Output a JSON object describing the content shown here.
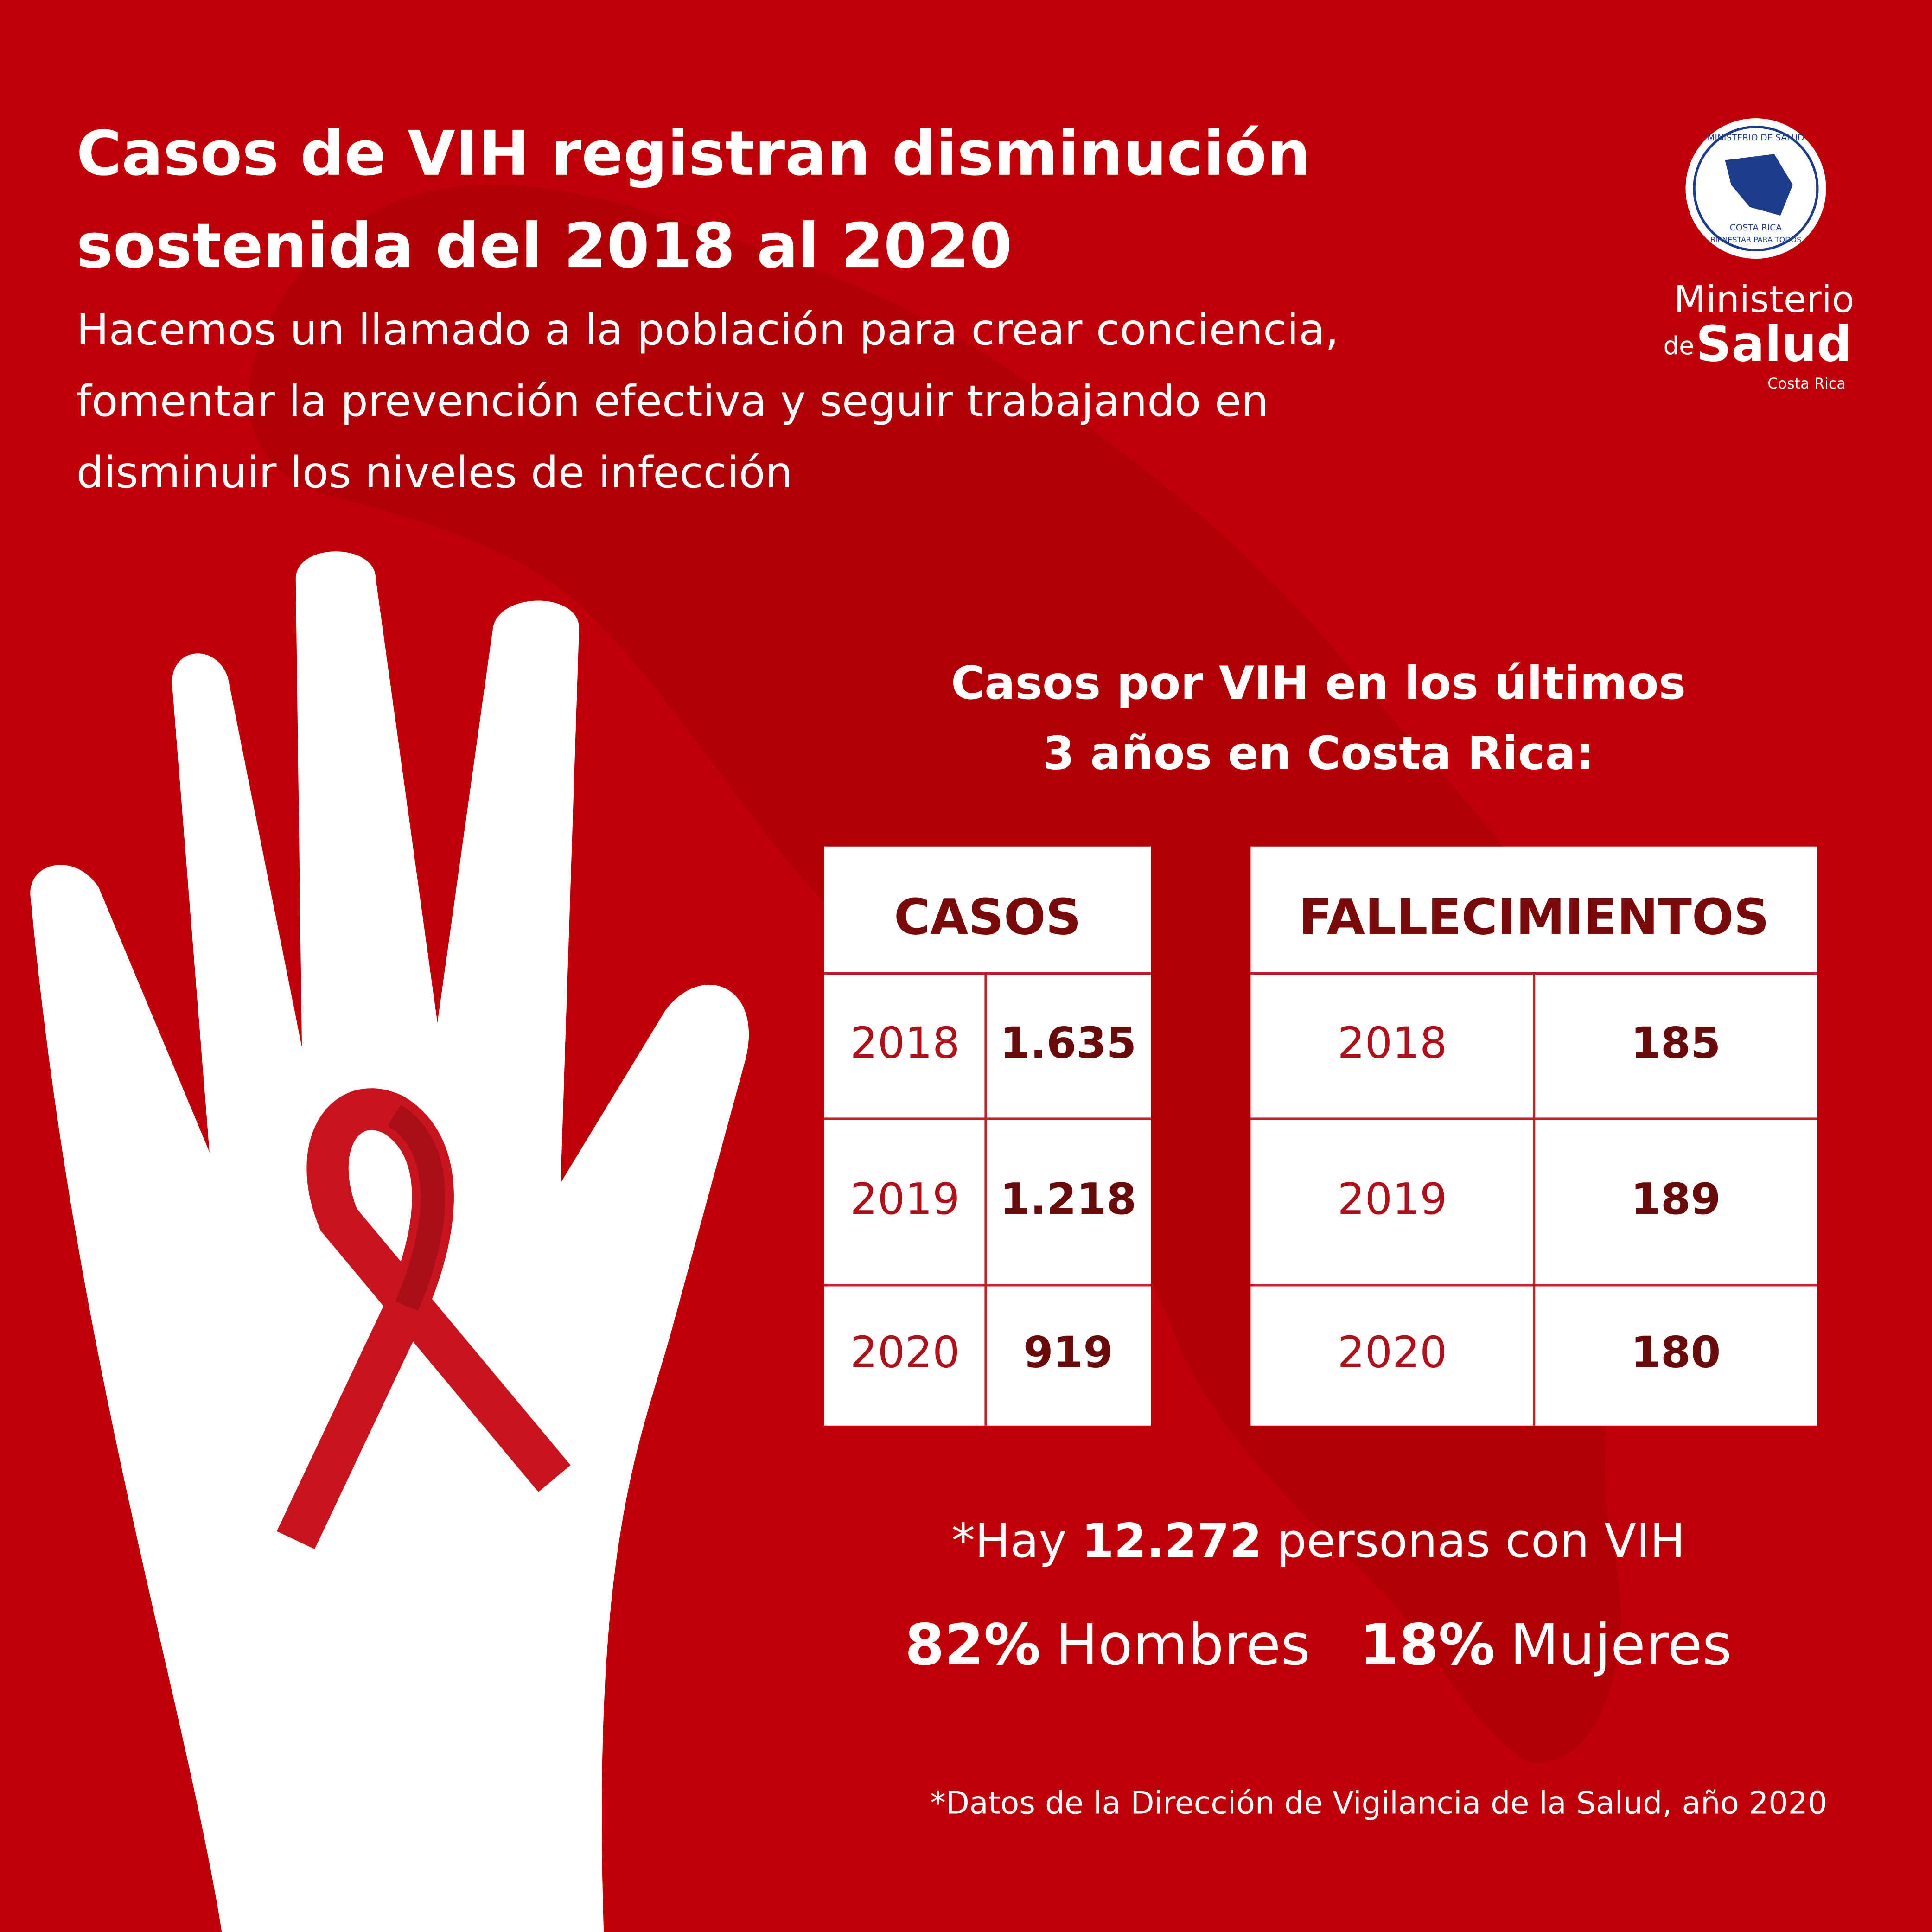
{
  "header": {
    "title_lines": [
      "Casos de VIH registran disminución",
      "sostenida del 2018 al 2020"
    ],
    "subtitle_lines": [
      "Hacemos un llamado a la población para crear conciencia,",
      "fomentar la prevención efectiva y seguir trabajando en",
      "disminuir los niveles de infección"
    ]
  },
  "logo": {
    "seal_top": "MINISTERIO DE SALUD",
    "seal_mid": "COSTA RICA",
    "seal_bottom": "BIENESTAR PARA TODOS",
    "name_1": "Ministerio",
    "name_2": "de",
    "name_3": "Salud",
    "country": "Costa Rica"
  },
  "section_title_lines": [
    "Casos por VIH en los últimos",
    "3 años en Costa Rica:"
  ],
  "tables": [
    {
      "header": "CASOS",
      "rows": [
        [
          "2018",
          "1.635"
        ],
        [
          "2019",
          "1.218"
        ],
        [
          "2020",
          "919"
        ]
      ]
    },
    {
      "header": "FALLECIMIENTOS",
      "rows": [
        [
          "2018",
          "185"
        ],
        [
          "2019",
          "189"
        ],
        [
          "2020",
          "180"
        ]
      ]
    }
  ],
  "summary": {
    "prefix": "*Hay",
    "total": "12.272",
    "suffix": "personas con VIH",
    "men_pct": "82%",
    "men": "Hombres",
    "women_pct": "18%",
    "women": "Mujeres"
  },
  "footnote": "*Datos de la Dirección de Vigilancia de la Salud, año 2020"
}
